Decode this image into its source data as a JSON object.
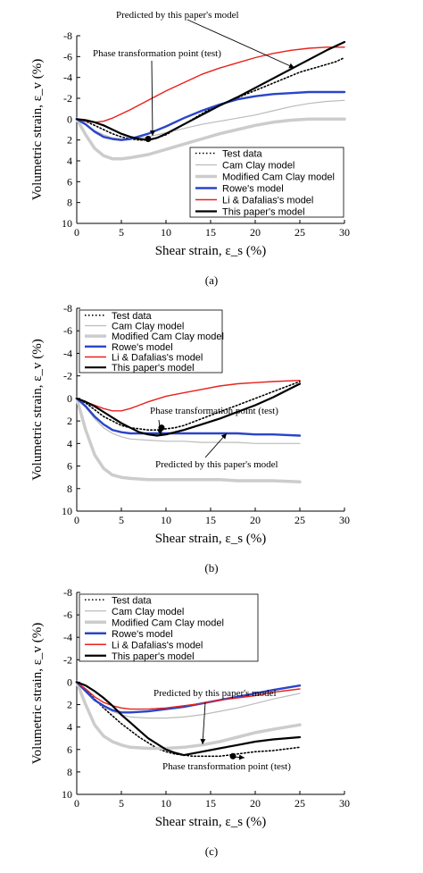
{
  "figure": {
    "series_styles": [
      {
        "color": "#000000",
        "width": 1.6,
        "dash": "1.5,2.5"
      },
      {
        "color": "#bbbbbb",
        "width": 1.2,
        "dash": ""
      },
      {
        "color": "#cccccc",
        "width": 3.5,
        "dash": ""
      },
      {
        "color": "#2a45c8",
        "width": 2.4,
        "dash": ""
      },
      {
        "color": "#e8201c",
        "width": 1.4,
        "dash": ""
      },
      {
        "color": "#000000",
        "width": 2.2,
        "dash": ""
      }
    ]
  },
  "chart_data": [
    {
      "type": "line",
      "panel_label": "(a)",
      "xlabel": "Shear strain, ε_s (%)",
      "ylabel": "Volumetric strain, ε_v (%)",
      "xlim": [
        0,
        30
      ],
      "ylim": [
        10,
        -8
      ],
      "y_inverted": true,
      "xticks": [
        0,
        5,
        10,
        15,
        20,
        25,
        30
      ],
      "yticks": [
        -8,
        -6,
        -4,
        -2,
        0,
        2,
        4,
        6,
        8,
        10
      ],
      "legend_position": "lower-right",
      "series": [
        {
          "name": "Test data",
          "x": [
            0,
            1,
            2,
            3,
            4,
            5,
            6,
            7,
            8,
            9,
            10,
            11,
            12,
            13,
            14,
            15,
            17,
            19,
            21,
            23,
            25,
            27,
            29,
            30
          ],
          "y": [
            0,
            0.2,
            0.6,
            1.0,
            1.4,
            1.7,
            1.9,
            2.0,
            2.0,
            1.8,
            1.5,
            1.0,
            0.5,
            0.0,
            -0.5,
            -1.0,
            -1.7,
            -2.4,
            -3.1,
            -3.8,
            -4.5,
            -5.0,
            -5.5,
            -5.9
          ]
        },
        {
          "name": "Cam Clay model",
          "x": [
            0,
            1,
            2,
            3,
            4,
            5,
            6,
            8,
            10,
            12,
            14,
            16,
            18,
            20,
            22,
            24,
            26,
            28,
            30
          ],
          "y": [
            0,
            0.5,
            1.1,
            1.5,
            1.8,
            1.9,
            1.9,
            1.7,
            1.3,
            0.9,
            0.5,
            0.2,
            -0.1,
            -0.4,
            -0.8,
            -1.2,
            -1.5,
            -1.7,
            -1.8
          ]
        },
        {
          "name": "Modified Cam Clay model",
          "x": [
            0,
            1,
            2,
            3,
            4,
            5,
            6,
            8,
            10,
            12,
            14,
            16,
            18,
            20,
            22,
            24,
            26,
            28,
            30
          ],
          "y": [
            0,
            1.5,
            2.8,
            3.5,
            3.8,
            3.8,
            3.7,
            3.4,
            2.9,
            2.4,
            1.9,
            1.4,
            1.0,
            0.6,
            0.3,
            0.1,
            0.0,
            0.0,
            0.0
          ]
        },
        {
          "name": "Rowe's model",
          "x": [
            0,
            1,
            2,
            3,
            4,
            5,
            6,
            8,
            10,
            12,
            14,
            16,
            18,
            20,
            22,
            24,
            26,
            28,
            30
          ],
          "y": [
            0,
            0.5,
            1.2,
            1.7,
            1.9,
            2.0,
            1.9,
            1.4,
            0.7,
            -0.1,
            -0.8,
            -1.4,
            -1.9,
            -2.2,
            -2.4,
            -2.5,
            -2.6,
            -2.6,
            -2.6
          ]
        },
        {
          "name": "Li & Dafalias's model",
          "x": [
            0,
            1,
            2,
            3,
            4,
            6,
            8,
            10,
            12,
            14,
            16,
            18,
            20,
            22,
            24,
            26,
            28,
            30
          ],
          "y": [
            0,
            0.2,
            0.3,
            0.2,
            -0.1,
            -0.9,
            -1.8,
            -2.7,
            -3.5,
            -4.3,
            -4.9,
            -5.4,
            -5.9,
            -6.3,
            -6.6,
            -6.8,
            -6.9,
            -6.9
          ]
        },
        {
          "name": "This paper's model",
          "x": [
            0,
            1,
            2,
            3,
            4,
            5,
            6,
            7,
            8,
            9,
            10,
            12,
            14,
            16,
            18,
            20,
            22,
            24,
            26,
            28,
            30
          ],
          "y": [
            0,
            0.1,
            0.3,
            0.6,
            1.0,
            1.4,
            1.7,
            1.9,
            2.0,
            1.8,
            1.4,
            0.5,
            -0.4,
            -1.3,
            -2.1,
            -3.0,
            -3.9,
            -4.8,
            -5.7,
            -6.6,
            -7.4
          ]
        }
      ],
      "annotations": [
        {
          "text": "Predicted by this paper's model",
          "at": [
            24.5,
            -5.7
          ]
        },
        {
          "text": "Phase transformation point (test)",
          "at": [
            8,
            1.9
          ]
        }
      ]
    },
    {
      "type": "line",
      "panel_label": "(b)",
      "xlabel": "Shear strain, ε_s (%)",
      "ylabel": "Volumetric strain, ε_v (%)",
      "xlim": [
        0,
        30
      ],
      "ylim": [
        10,
        -8
      ],
      "y_inverted": true,
      "xticks": [
        0,
        5,
        10,
        15,
        20,
        25,
        30
      ],
      "yticks": [
        -8,
        -6,
        -4,
        -2,
        0,
        2,
        4,
        6,
        8,
        10
      ],
      "legend_position": "upper-left",
      "series": [
        {
          "name": "Test data",
          "x": [
            0,
            1,
            2,
            3,
            4,
            5,
            6,
            7,
            8,
            9,
            10,
            11,
            12,
            13,
            14,
            15,
            16,
            17,
            18,
            19,
            20,
            21,
            22,
            23,
            24,
            25
          ],
          "y": [
            0,
            0.4,
            1.0,
            1.6,
            2.0,
            2.4,
            2.6,
            2.7,
            2.8,
            2.8,
            2.7,
            2.6,
            2.4,
            2.1,
            1.8,
            1.5,
            1.2,
            0.9,
            0.6,
            0.3,
            0.0,
            -0.3,
            -0.6,
            -0.9,
            -1.2,
            -1.5
          ]
        },
        {
          "name": "Cam Clay model",
          "x": [
            0,
            1,
            2,
            3,
            4,
            5,
            6,
            8,
            10,
            12,
            14,
            16,
            18,
            20,
            22,
            25
          ],
          "y": [
            0,
            0.8,
            1.8,
            2.6,
            3.1,
            3.4,
            3.6,
            3.7,
            3.8,
            3.8,
            3.9,
            3.9,
            3.9,
            4.0,
            4.0,
            4.0
          ]
        },
        {
          "name": "Modified Cam Clay model",
          "x": [
            0,
            1,
            2,
            3,
            4,
            5,
            6,
            8,
            10,
            12,
            14,
            16,
            18,
            20,
            22,
            25
          ],
          "y": [
            0,
            2.8,
            5.0,
            6.2,
            6.8,
            7.0,
            7.1,
            7.2,
            7.2,
            7.2,
            7.2,
            7.2,
            7.3,
            7.3,
            7.3,
            7.4
          ]
        },
        {
          "name": "Rowe's model",
          "x": [
            0,
            1,
            2,
            3,
            4,
            5,
            6,
            8,
            10,
            12,
            14,
            16,
            18,
            20,
            22,
            25
          ],
          "y": [
            0,
            0.7,
            1.6,
            2.3,
            2.8,
            3.0,
            3.1,
            3.1,
            3.1,
            3.1,
            3.1,
            3.1,
            3.1,
            3.2,
            3.2,
            3.3
          ]
        },
        {
          "name": "Li & Dafalias's model",
          "x": [
            0,
            1,
            2,
            3,
            4,
            5,
            6,
            7,
            8,
            10,
            12,
            14,
            16,
            18,
            20,
            22,
            25
          ],
          "y": [
            0,
            0.3,
            0.6,
            0.9,
            1.1,
            1.1,
            0.9,
            0.6,
            0.3,
            -0.2,
            -0.5,
            -0.8,
            -1.1,
            -1.3,
            -1.4,
            -1.5,
            -1.6
          ]
        },
        {
          "name": "This paper's model",
          "x": [
            0,
            1,
            2,
            3,
            4,
            5,
            6,
            7,
            8,
            9,
            10,
            11,
            12,
            14,
            16,
            18,
            20,
            22,
            24,
            25
          ],
          "y": [
            0,
            0.3,
            0.7,
            1.2,
            1.7,
            2.2,
            2.6,
            3.0,
            3.2,
            3.3,
            3.2,
            3.0,
            2.8,
            2.3,
            1.8,
            1.2,
            0.6,
            -0.1,
            -0.9,
            -1.3
          ]
        }
      ],
      "annotations": [
        {
          "text": "Phase transformation point (test)",
          "at": [
            9.5,
            2.6
          ]
        },
        {
          "text": "Predicted by this paper's model",
          "at": [
            16.8,
            0.8
          ]
        }
      ]
    },
    {
      "type": "line",
      "panel_label": "(c)",
      "xlabel": "Shear strain, ε_s (%)",
      "ylabel": "Volumetric strain, ε_v (%)",
      "xlim": [
        0,
        30
      ],
      "ylim": [
        10,
        -8
      ],
      "y_inverted": true,
      "xticks": [
        0,
        5,
        10,
        15,
        20,
        25,
        30
      ],
      "yticks": [
        -8,
        -6,
        -4,
        -2,
        0,
        2,
        4,
        6,
        8,
        10
      ],
      "legend_position": "upper-left",
      "series": [
        {
          "name": "Test data",
          "x": [
            0,
            1,
            2,
            3,
            4,
            5,
            6,
            7,
            8,
            9,
            10,
            11,
            12,
            13,
            14,
            15,
            16,
            17,
            18,
            19,
            20,
            22,
            25
          ],
          "y": [
            0,
            0.7,
            1.5,
            2.3,
            3.0,
            3.7,
            4.3,
            4.9,
            5.4,
            5.9,
            6.2,
            6.4,
            6.5,
            6.6,
            6.6,
            6.6,
            6.6,
            6.5,
            6.4,
            6.3,
            6.2,
            6.1,
            5.8
          ]
        },
        {
          "name": "Cam Clay model",
          "x": [
            0,
            1,
            2,
            3,
            4,
            5,
            6,
            8,
            10,
            12,
            14,
            16,
            18,
            20,
            22,
            25
          ],
          "y": [
            0,
            0.8,
            1.6,
            2.2,
            2.6,
            2.9,
            3.1,
            3.2,
            3.2,
            3.1,
            2.9,
            2.6,
            2.3,
            1.9,
            1.5,
            1.0
          ]
        },
        {
          "name": "Modified Cam Clay model",
          "x": [
            0,
            1,
            2,
            3,
            4,
            5,
            6,
            8,
            10,
            12,
            14,
            16,
            18,
            20,
            22,
            25
          ],
          "y": [
            0,
            2.0,
            3.8,
            4.8,
            5.3,
            5.6,
            5.8,
            5.9,
            5.9,
            5.8,
            5.6,
            5.3,
            4.9,
            4.5,
            4.2,
            3.8
          ]
        },
        {
          "name": "Rowe's model",
          "x": [
            0,
            1,
            2,
            3,
            4,
            5,
            6,
            8,
            10,
            12,
            14,
            16,
            18,
            20,
            22,
            25
          ],
          "y": [
            0,
            0.8,
            1.6,
            2.1,
            2.5,
            2.7,
            2.7,
            2.6,
            2.4,
            2.2,
            1.9,
            1.6,
            1.3,
            1.0,
            0.7,
            0.3
          ]
        },
        {
          "name": "Li & Dafalias's model",
          "x": [
            0,
            1,
            2,
            3,
            4,
            5,
            6,
            8,
            10,
            12,
            14,
            16,
            18,
            20,
            22,
            25
          ],
          "y": [
            0,
            0.6,
            1.3,
            1.8,
            2.1,
            2.3,
            2.4,
            2.4,
            2.3,
            2.1,
            1.9,
            1.6,
            1.4,
            1.2,
            0.9,
            0.6
          ]
        },
        {
          "name": "This paper's model",
          "x": [
            0,
            1,
            2,
            3,
            4,
            5,
            6,
            7,
            8,
            9,
            10,
            11,
            12,
            14,
            16,
            18,
            20,
            22,
            25
          ],
          "y": [
            0,
            0.3,
            0.8,
            1.4,
            2.1,
            2.9,
            3.6,
            4.3,
            5.0,
            5.5,
            6.0,
            6.3,
            6.5,
            6.2,
            5.9,
            5.6,
            5.3,
            5.1,
            4.9
          ]
        }
      ],
      "annotations": [
        {
          "text": "Predicted by this paper's model",
          "at": [
            14,
            6.1
          ]
        },
        {
          "text": "Phase transformation point (test)",
          "at": [
            17.5,
            6.6
          ]
        }
      ]
    }
  ]
}
